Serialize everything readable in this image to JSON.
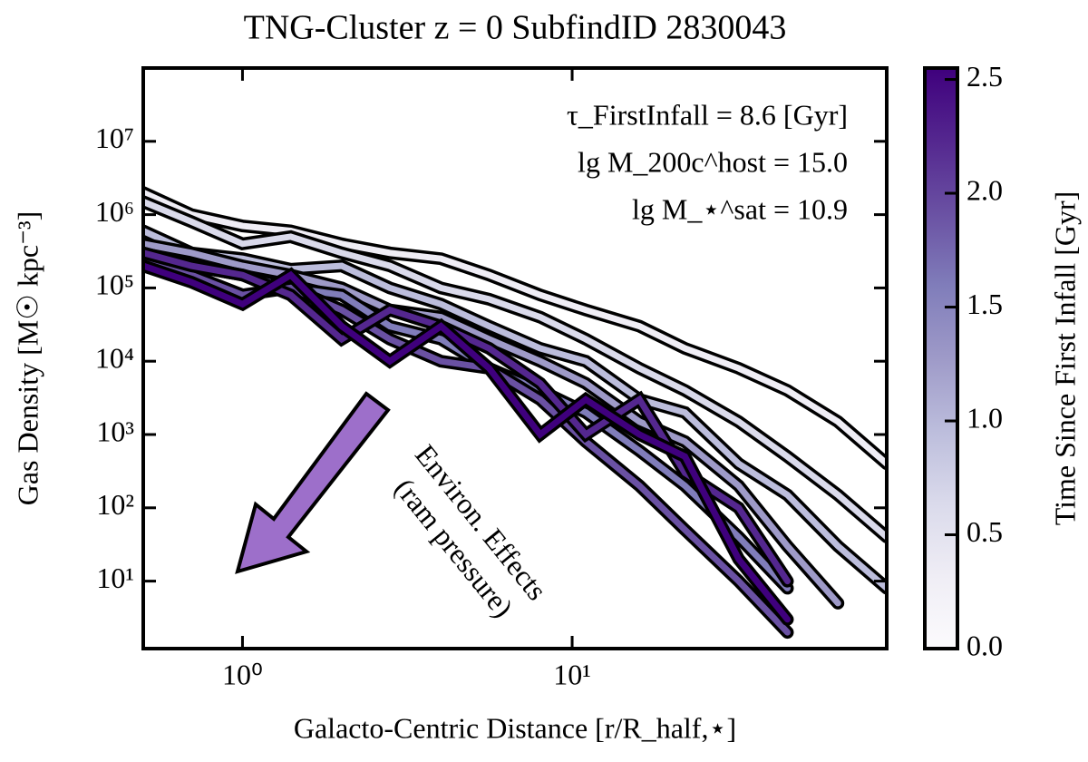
{
  "chart_data": {
    "type": "line",
    "title": "TNG-Cluster z = 0 SubfindID 2830043",
    "x_label": "Galacto-Centric Distance [r/R_half,⋆]",
    "y_label": "Gas Density [M☉ kpc⁻³]",
    "colorbar_label": "Time Since First Infall [Gyr]",
    "annotations": [
      "τ_FirstInfall = 8.6 [Gyr]",
      "lg M_200c^host = 15.0",
      "lg M_⋆^sat = 10.9"
    ],
    "arrow_text": [
      "Environ. Effects",
      "(ram pressure)"
    ],
    "log_x": true,
    "log_y": true,
    "xlim": [
      0.5,
      90
    ],
    "ylim": [
      1.2,
      100000000
    ],
    "xticks": [
      {
        "value": 1,
        "label": "10⁰"
      },
      {
        "value": 10,
        "label": "10¹"
      }
    ],
    "yticks": [
      {
        "value": 10,
        "label": "10¹"
      },
      {
        "value": 100,
        "label": "10²"
      },
      {
        "value": 1000,
        "label": "10³"
      },
      {
        "value": 10000,
        "label": "10⁴"
      },
      {
        "value": 100000,
        "label": "10⁵"
      },
      {
        "value": 1000000,
        "label": "10⁶"
      },
      {
        "value": 10000000,
        "label": "10⁷"
      }
    ],
    "clim": [
      0,
      2.55
    ],
    "cticks": [
      {
        "value": 0,
        "label": "0.0"
      },
      {
        "value": 0.5,
        "label": "0.5"
      },
      {
        "value": 1,
        "label": "1.0"
      },
      {
        "value": 1.5,
        "label": "1.5"
      },
      {
        "value": 2,
        "label": "2.0"
      },
      {
        "value": 2.5,
        "label": "2.5"
      }
    ],
    "colormap": [
      "#fcfbfd",
      "#efedf5",
      "#dadaeb",
      "#bcbddc",
      "#9e9ac8",
      "#807dba",
      "#6a51a3",
      "#54278f",
      "#3f007d"
    ],
    "x": [
      0.5,
      0.7,
      1,
      1.4,
      2,
      2.8,
      4,
      5.6,
      8,
      11,
      16,
      22,
      32,
      45,
      64,
      90
    ],
    "series": [
      {
        "color": "#efedf5",
        "values": [
          2000000,
          1000000,
          700000,
          600000,
          400000,
          300000,
          250000,
          150000,
          80000,
          50000,
          30000,
          15000,
          8000,
          4000,
          1500,
          400
        ]
      },
      {
        "color": "#dadaeb",
        "values": [
          1500000,
          800000,
          400000,
          500000,
          300000,
          200000,
          100000,
          70000,
          40000,
          20000,
          8000,
          4000,
          1500,
          500,
          150,
          40
        ]
      },
      {
        "color": "#bcbddc",
        "values": [
          600000,
          300000,
          250000,
          180000,
          200000,
          100000,
          60000,
          30000,
          15000,
          10000,
          3000,
          2000,
          400,
          150,
          30,
          8
        ]
      },
      {
        "color": "#9e9ac8",
        "values": [
          400000,
          300000,
          200000,
          150000,
          100000,
          50000,
          40000,
          20000,
          10000,
          5000,
          1500,
          800,
          200,
          30,
          5,
          null
        ]
      },
      {
        "color": "#807dba",
        "values": [
          300000,
          200000,
          150000,
          100000,
          80000,
          30000,
          20000,
          8000,
          4000,
          2000,
          600,
          200,
          40,
          8,
          null,
          null
        ]
      },
      {
        "color": "#6a51a3",
        "values": [
          250000,
          150000,
          80000,
          100000,
          50000,
          20000,
          10000,
          8000,
          3000,
          800,
          200,
          50,
          10,
          2,
          null,
          null
        ]
      },
      {
        "color": "#54278f",
        "values": [
          300000,
          200000,
          150000,
          80000,
          20000,
          50000,
          30000,
          15000,
          5000,
          1000,
          3000,
          300,
          100,
          10,
          null,
          null
        ]
      },
      {
        "color": "#3f007d",
        "values": [
          200000,
          120000,
          60000,
          150000,
          30000,
          10000,
          30000,
          8000,
          1000,
          3000,
          1000,
          500,
          20,
          3,
          null,
          null
        ]
      }
    ]
  }
}
